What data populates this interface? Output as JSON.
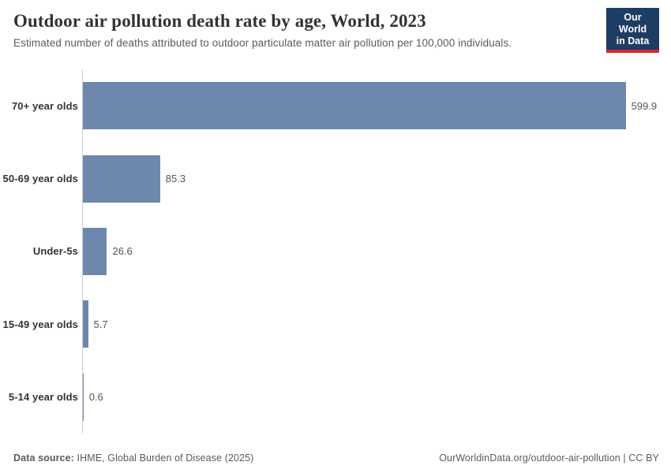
{
  "header": {
    "title": "Outdoor air pollution death rate by age, World, 2023",
    "subtitle": "Estimated number of deaths attributed to outdoor particulate matter air pollution per 100,000 individuals.",
    "logo": {
      "line1": "Our World",
      "line2": "in Data",
      "bg_color": "#1d3d63",
      "accent_color": "#e0232e"
    }
  },
  "chart_data": {
    "type": "bar",
    "orientation": "horizontal",
    "title": "Outdoor air pollution death rate by age, World, 2023",
    "subtitle": "Estimated number of deaths attributed to outdoor particulate matter air pollution per 100,000 individuals.",
    "categories": [
      "70+ year olds",
      "50-69 year olds",
      "Under-5s",
      "15-49 year olds",
      "5-14 year olds"
    ],
    "values": [
      599.9,
      85.3,
      26.6,
      5.7,
      0.6
    ],
    "xlabel": "",
    "ylabel": "",
    "xlim": [
      0,
      650
    ],
    "grid": false,
    "legend": false,
    "bar_color": "#6e87ad",
    "value_label_color": "#555555"
  },
  "footer": {
    "source_label": "Data source:",
    "source_text": " IHME, Global Burden of Disease (2025)",
    "url_text": "OurWorldinData.org/outdoor-air-pollution | CC BY"
  }
}
